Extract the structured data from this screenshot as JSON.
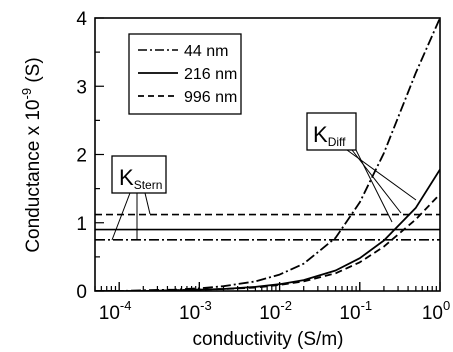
{
  "chart_data": {
    "type": "line",
    "xlabel": "conductivity (S/m)",
    "ylabel_main": "Conductance x 10",
    "ylabel_sup": "-9",
    "ylabel_unit": " (S)",
    "xscale": "log",
    "xlim": [
      5e-05,
      1
    ],
    "ylim": [
      0,
      4
    ],
    "xticks": [
      {
        "value": 0.0001,
        "base": "10",
        "exp": "-4"
      },
      {
        "value": 0.001,
        "base": "10",
        "exp": "-3"
      },
      {
        "value": 0.01,
        "base": "10",
        "exp": "-2"
      },
      {
        "value": 0.1,
        "base": "10",
        "exp": "-1"
      },
      {
        "value": 1,
        "base": "10",
        "exp": "0"
      }
    ],
    "yticks": [
      0,
      1,
      2,
      3,
      4
    ],
    "grid": false,
    "legend_position": "top-left",
    "series": [
      {
        "name": "44 nm",
        "dash": "dashdot",
        "total": {
          "x": [
            5e-05,
            0.0001,
            0.0002,
            0.0005,
            0.001,
            0.002,
            0.005,
            0.01,
            0.02,
            0.05,
            0.1,
            0.2,
            0.5,
            1
          ],
          "y": [
            0.0,
            0.0,
            0.01,
            0.02,
            0.04,
            0.07,
            0.14,
            0.24,
            0.4,
            0.78,
            1.3,
            2.02,
            3.2,
            4.0
          ]
        },
        "stern": 0.75
      },
      {
        "name": "216 nm",
        "dash": "solid",
        "total": {
          "x": [
            5e-05,
            0.0001,
            0.0002,
            0.0005,
            0.001,
            0.002,
            0.005,
            0.01,
            0.02,
            0.05,
            0.1,
            0.2,
            0.5,
            1
          ],
          "y": [
            0.0,
            0.0,
            0.0,
            0.01,
            0.02,
            0.03,
            0.06,
            0.1,
            0.16,
            0.3,
            0.48,
            0.74,
            1.22,
            1.78
          ]
        },
        "stern": 0.9
      },
      {
        "name": "996 nm",
        "dash": "dashed",
        "total": {
          "x": [
            5e-05,
            0.0001,
            0.0002,
            0.0005,
            0.001,
            0.002,
            0.005,
            0.01,
            0.02,
            0.05,
            0.1,
            0.2,
            0.5,
            1
          ],
          "y": [
            0.0,
            0.0,
            0.0,
            0.01,
            0.02,
            0.03,
            0.05,
            0.09,
            0.14,
            0.26,
            0.42,
            0.65,
            1.05,
            1.42
          ]
        },
        "stern": 1.12
      }
    ],
    "annotations": {
      "k_stern": {
        "main": "K",
        "sub": "Stern"
      },
      "k_diff": {
        "main": "K",
        "sub": "Diff"
      }
    }
  }
}
